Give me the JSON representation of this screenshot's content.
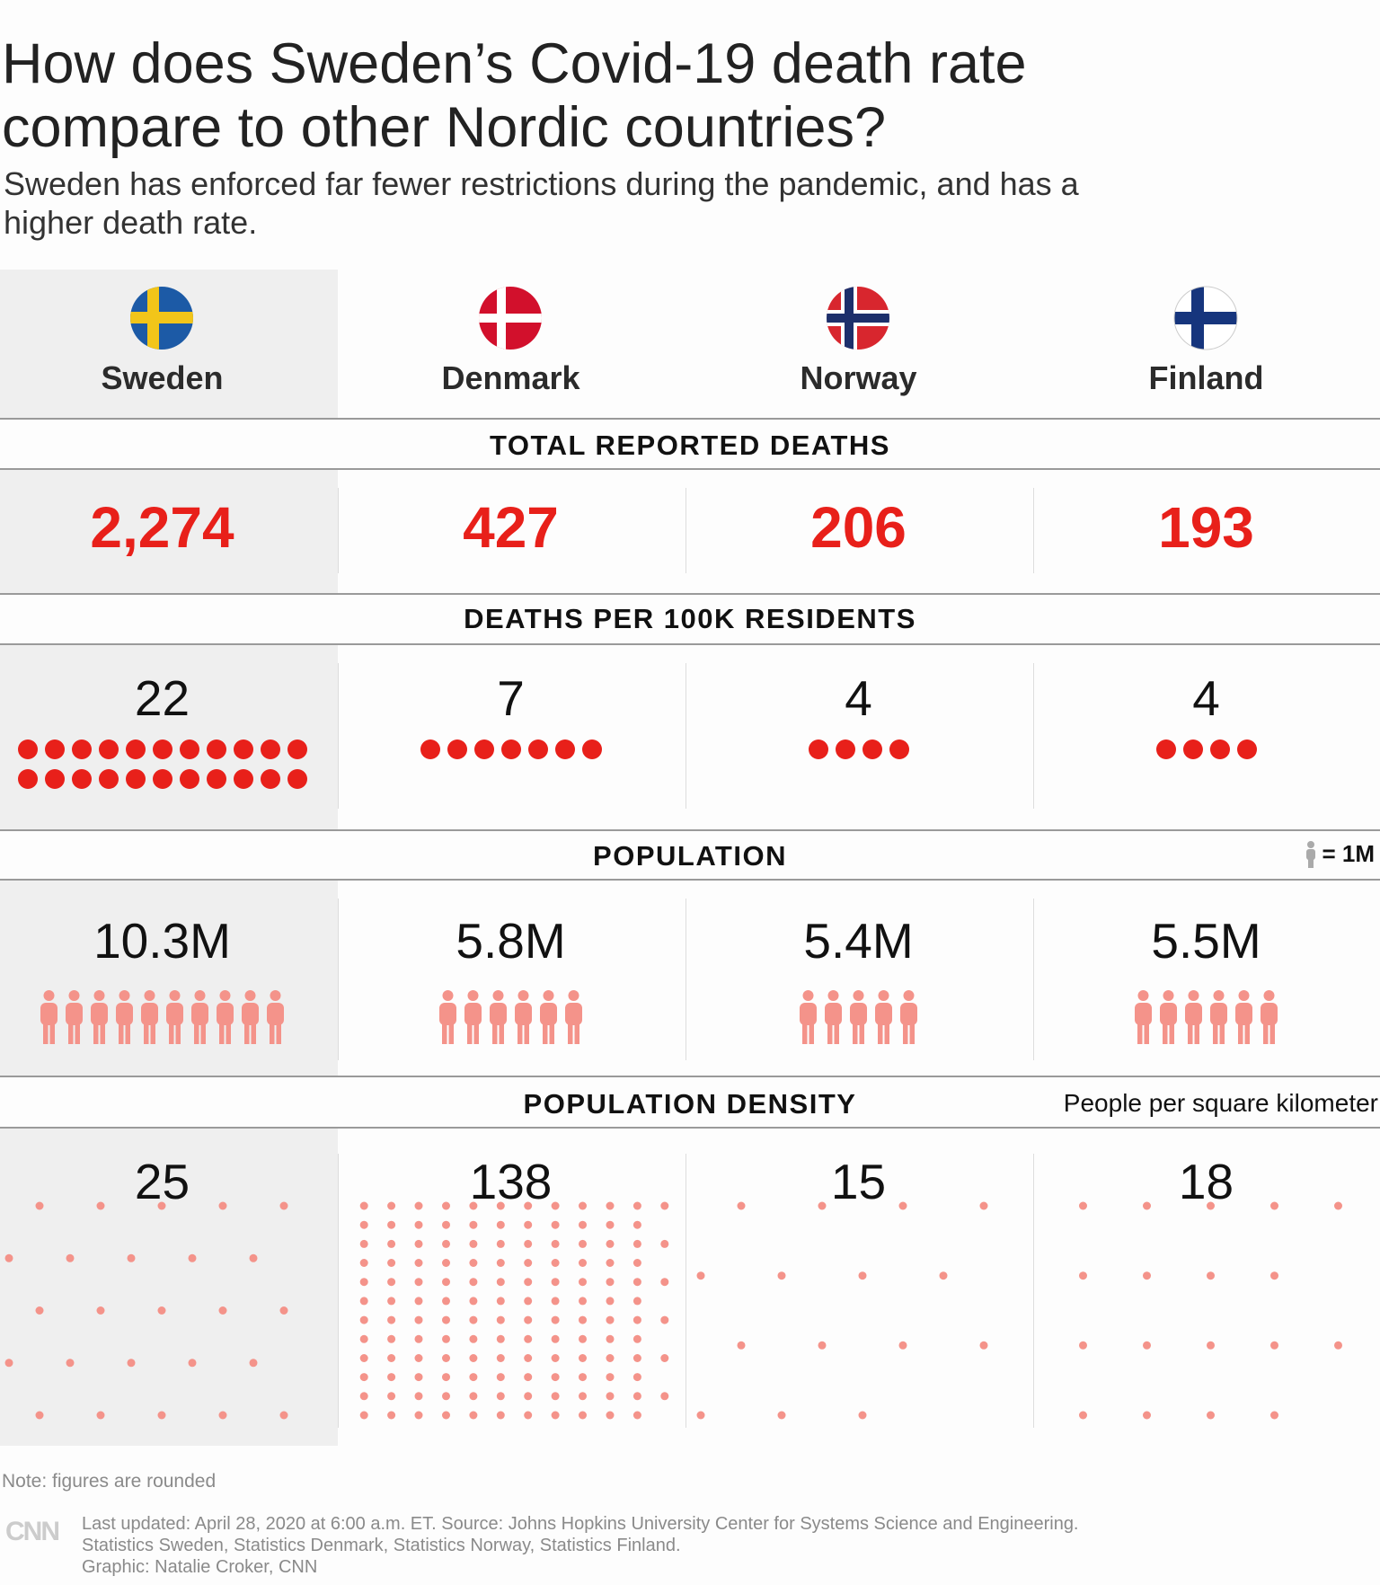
{
  "title": "How does Sweden’s Covid-19 death rate compare to other Nordic countries?",
  "subtitle": "Sweden has enforced far fewer restrictions during the pandemic, and has a higher death rate.",
  "sections": {
    "deaths": "TOTAL REPORTED DEATHS",
    "per100k": "DEATHS PER 100K RESIDENTS",
    "population": "POPULATION",
    "density": "POPULATION DENSITY"
  },
  "legend": {
    "population_unit": "= 1M",
    "density_unit": "People per square kilometer"
  },
  "colors": {
    "accent_red": "#e8201a",
    "figure_pink": "#f4938a",
    "density_dot": "#f4938a"
  },
  "chart_data": {
    "type": "table",
    "categories": [
      "Sweden",
      "Denmark",
      "Norway",
      "Finland"
    ],
    "total_deaths": [
      "2,274",
      "427",
      "206",
      "193"
    ],
    "deaths_per_100k": [
      "22",
      "7",
      "4",
      "4"
    ],
    "population": [
      "10.3M",
      "5.8M",
      "5.4M",
      "5.5M"
    ],
    "population_figures": [
      10,
      6,
      5,
      6
    ],
    "density": [
      "25",
      "138",
      "15",
      "18"
    ]
  },
  "note": "Note: figures are rounded",
  "logo": "CNN",
  "source_lines": [
    "Last updated: April 28, 2020 at 6:00 a.m. ET. Source: Johns Hopkins University Center for Systems Science and Engineering.",
    "Statistics Sweden, Statistics Denmark, Statistics Norway, Statistics Finland.",
    "Graphic: Natalie Croker, CNN"
  ]
}
